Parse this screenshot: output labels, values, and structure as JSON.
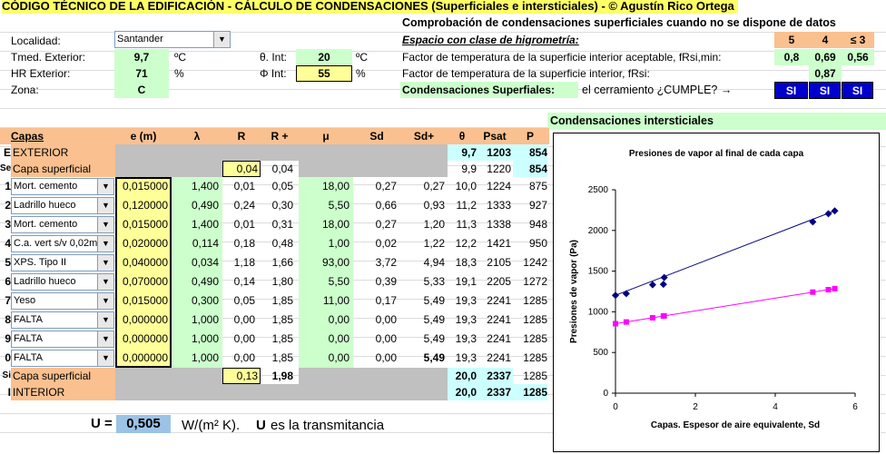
{
  "title": "CÓDIGO TÉCNICO DE LA EDIFICACIÓN - CÁLCULO DE CONDENSACIONES (Superficiales e intersticiales) - © Agustín Rico Ortega",
  "left": {
    "localidad_label": "Localidad:",
    "localidad_value": "Santander",
    "tmed_label": "Tmed. Exterior:",
    "tmed_value": "9,7",
    "tmed_unit": "ºC",
    "hr_label": "HR Exterior:",
    "hr_value": "71",
    "hr_unit": "%",
    "zona_label": "Zona:",
    "zona_value": "C",
    "tint_label": "θ. Int:",
    "tint_value": "20",
    "tint_unit": "ºC",
    "phi_label": "Φ Int:",
    "phi_value": "55",
    "phi_unit": "%"
  },
  "sup": {
    "heading": "Comprobación de condensaciones superficiales cuando no se dispone de datos",
    "espacio_label": "Espacio con clase de higrometría:",
    "classes": [
      "5",
      "4",
      "≤ 3"
    ],
    "fact1_label": "Factor de temperatura de la superficie interior aceptable, fRsi,min:",
    "fact1_values": [
      "0,8",
      "0,69",
      "0,56"
    ],
    "fact2_label": "Factor de temperatura de la superficie interior, fRsi:",
    "fact2_value": "0,87",
    "cond_label": "Condensaciones Superfiales:",
    "cond_text": "el cerramiento  ¿CUMPLE? →",
    "cumple": [
      "SI",
      "SI",
      "SI"
    ]
  },
  "inter_heading": "Condensaciones intersticiales",
  "table": {
    "headers": [
      "Capas",
      "e (m)",
      "λ",
      "R",
      "R +",
      "μ",
      "Sd",
      "Sd+",
      "θ",
      "Psat",
      "P"
    ],
    "exterior": {
      "rn": "E",
      "label": "EXTERIOR",
      "theta": "9,7",
      "psat": "1203",
      "p": "854"
    },
    "sup_ext": {
      "rn": "Se",
      "label": "Capa superficial",
      "r": "0,04",
      "rp": "0,04",
      "theta": "9,9",
      "psat": "1220",
      "p": "854"
    },
    "layers": [
      {
        "rn": "1",
        "name": "Mort. cemento",
        "e": "0,015000",
        "l": "1,400",
        "r": "0,01",
        "rp": "0,05",
        "mu": "18,00",
        "sd": "0,27",
        "sdp": "0,27",
        "theta": "10,0",
        "psat": "1224",
        "p": "875"
      },
      {
        "rn": "2",
        "name": "Ladrillo hueco",
        "e": "0,120000",
        "l": "0,490",
        "r": "0,24",
        "rp": "0,30",
        "mu": "5,50",
        "sd": "0,66",
        "sdp": "0,93",
        "theta": "11,2",
        "psat": "1333",
        "p": "927"
      },
      {
        "rn": "3",
        "name": "Mort. cemento",
        "e": "0,015000",
        "l": "1,400",
        "r": "0,01",
        "rp": "0,31",
        "mu": "18,00",
        "sd": "0,27",
        "sdp": "1,20",
        "theta": "11,3",
        "psat": "1338",
        "p": "948"
      },
      {
        "rn": "4",
        "name": "C.a. vert s/v 0,02m",
        "e": "0,020000",
        "l": "0,114",
        "r": "0,18",
        "rp": "0,48",
        "mu": "1,00",
        "sd": "0,02",
        "sdp": "1,22",
        "theta": "12,2",
        "psat": "1421",
        "p": "950"
      },
      {
        "rn": "5",
        "name": "XPS. Tipo II",
        "e": "0,040000",
        "l": "0,034",
        "r": "1,18",
        "rp": "1,66",
        "mu": "93,00",
        "sd": "3,72",
        "sdp": "4,94",
        "theta": "18,3",
        "psat": "2105",
        "p": "1242"
      },
      {
        "rn": "6",
        "name": "Ladrillo hueco",
        "e": "0,070000",
        "l": "0,490",
        "r": "0,14",
        "rp": "1,80",
        "mu": "5,50",
        "sd": "0,39",
        "sdp": "5,33",
        "theta": "19,1",
        "psat": "2205",
        "p": "1272"
      },
      {
        "rn": "7",
        "name": "Yeso",
        "e": "0,015000",
        "l": "0,300",
        "r": "0,05",
        "rp": "1,85",
        "mu": "11,00",
        "sd": "0,17",
        "sdp": "5,49",
        "theta": "19,3",
        "psat": "2241",
        "p": "1285"
      },
      {
        "rn": "8",
        "name": "FALTA",
        "e": "0,000000",
        "l": "1,000",
        "r": "0,00",
        "rp": "1,85",
        "mu": "0,00",
        "sd": "0,00",
        "sdp": "5,49",
        "theta": "19,3",
        "psat": "2241",
        "p": "1285"
      },
      {
        "rn": "9",
        "name": "FALTA",
        "e": "0,000000",
        "l": "1,000",
        "r": "0,00",
        "rp": "1,85",
        "mu": "0,00",
        "sd": "0,00",
        "sdp": "5,49",
        "theta": "19,3",
        "psat": "2241",
        "p": "1285"
      },
      {
        "rn": "0",
        "name": "FALTA",
        "e": "0,000000",
        "l": "1,000",
        "r": "0,00",
        "rp": "1,85",
        "mu": "0,00",
        "sd": "0,00",
        "sdp": "5,49",
        "theta": "19,3",
        "psat": "2241",
        "p": "1285"
      }
    ],
    "sup_int": {
      "rn": "Si",
      "label": "Capa superficial",
      "r": "0,13",
      "rp": "1,98",
      "theta": "20,0",
      "psat": "2337",
      "p": "1285"
    },
    "interior": {
      "rn": "I",
      "label": "INTERIOR",
      "theta": "20,0",
      "psat": "2337",
      "p": "1285"
    }
  },
  "u": {
    "label": "U =",
    "value": "0,505",
    "unit": "W/(m² K).",
    "note_bold": "U",
    "note": "es la transmitancia"
  },
  "chart_data": {
    "type": "scatter",
    "title": "Presiones de vapor al final de cada capa",
    "xlabel": "Capas. Espesor de aire equivalente, Sd",
    "ylabel": "Presiones de vapor (Pa)",
    "xlim": [
      0,
      6
    ],
    "ylim": [
      0,
      2500
    ],
    "xticks": [
      0,
      2,
      4,
      6
    ],
    "yticks": [
      0,
      500,
      1000,
      1500,
      2000,
      2500
    ],
    "series": [
      {
        "color": "#000080",
        "marker": "diamond",
        "x": [
          0,
          0.27,
          0.93,
          1.2,
          1.22,
          4.94,
          5.33,
          5.49
        ],
        "y": [
          1203,
          1224,
          1333,
          1338,
          1421,
          2105,
          2205,
          2241
        ]
      },
      {
        "color": "#ff00ff",
        "marker": "square",
        "x": [
          0,
          0.27,
          0.93,
          1.2,
          1.22,
          4.94,
          5.33,
          5.49
        ],
        "y": [
          854,
          875,
          927,
          948,
          950,
          1242,
          1272,
          1285
        ]
      }
    ]
  }
}
